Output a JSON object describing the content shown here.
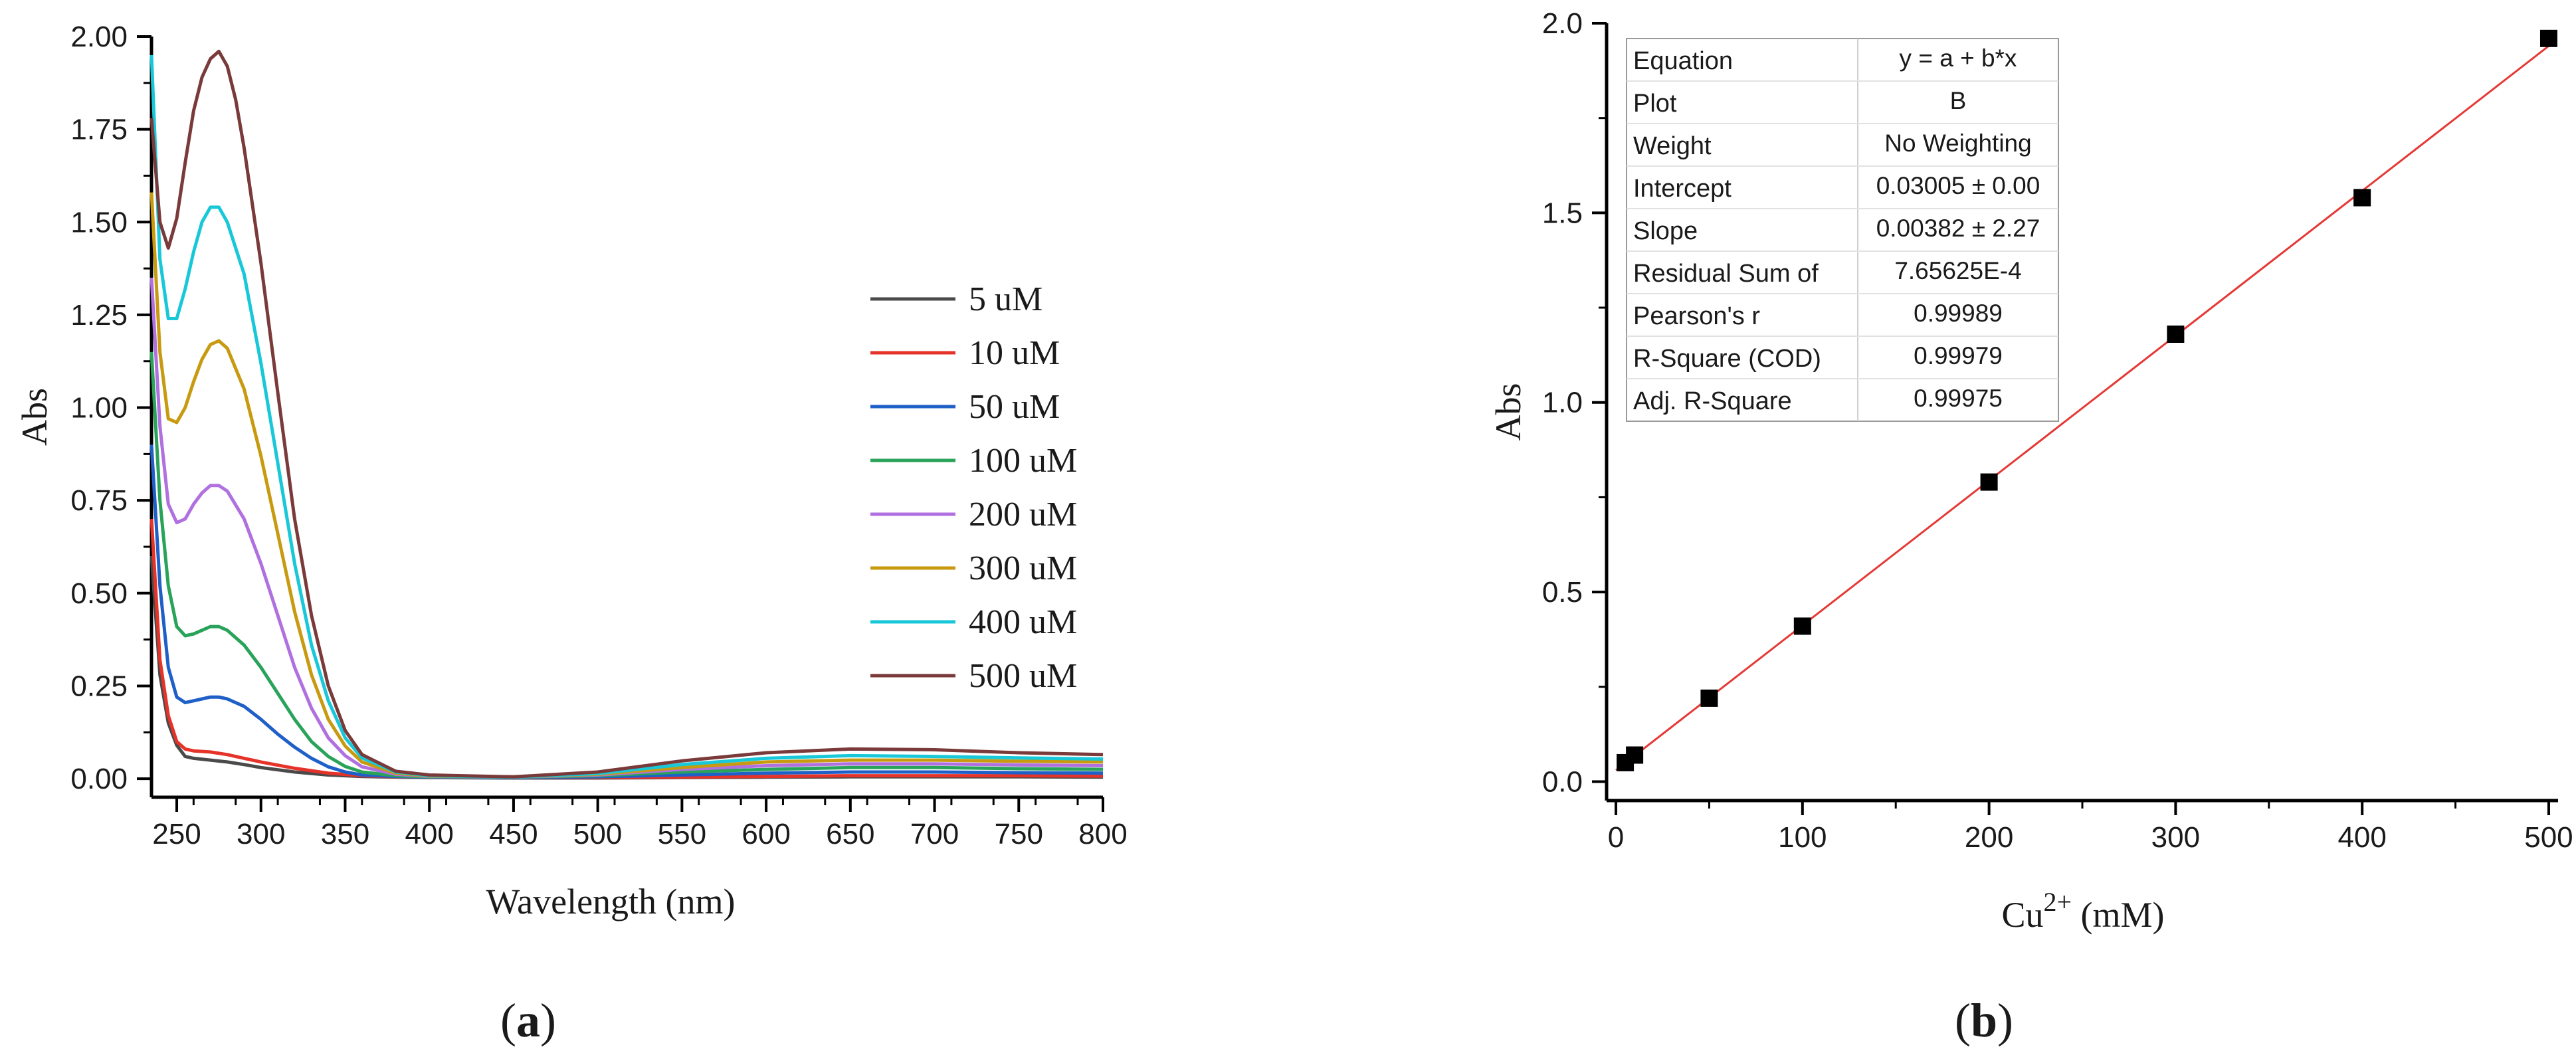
{
  "chart_data": [
    {
      "id": "a",
      "panel_label": "a",
      "type": "line",
      "xlabel": "Wavelength (nm)",
      "ylabel": "Abs",
      "xlim": [
        235,
        800
      ],
      "ylim": [
        -0.05,
        2.0
      ],
      "xticks": [
        250,
        300,
        350,
        400,
        450,
        500,
        550,
        600,
        650,
        700,
        750,
        800
      ],
      "yticks": [
        0.0,
        0.25,
        0.5,
        0.75,
        1.0,
        1.25,
        1.5,
        1.75,
        2.0
      ],
      "ytick_labels": [
        "0.00",
        "0.25",
        "0.50",
        "0.75",
        "1.00",
        "1.25",
        "1.50",
        "1.75",
        "2.00"
      ],
      "legend_position": "right-center",
      "series": [
        {
          "name": "5 uM",
          "color": "#4a4a4a",
          "x": [
            235,
            240,
            245,
            250,
            255,
            260,
            270,
            280,
            290,
            300,
            320,
            340,
            360,
            380,
            400,
            450,
            500,
            550,
            600,
            650,
            700,
            750,
            800
          ],
          "y": [
            0.6,
            0.28,
            0.15,
            0.09,
            0.06,
            0.055,
            0.05,
            0.045,
            0.038,
            0.03,
            0.018,
            0.01,
            0.006,
            0.004,
            0.003,
            0.002,
            0.002,
            0.003,
            0.004,
            0.005,
            0.005,
            0.005,
            0.004
          ]
        },
        {
          "name": "10 uM",
          "color": "#e5332a",
          "x": [
            235,
            240,
            245,
            250,
            255,
            260,
            270,
            280,
            290,
            300,
            320,
            340,
            360,
            380,
            400,
            450,
            500,
            550,
            600,
            650,
            700,
            750,
            800
          ],
          "y": [
            0.7,
            0.32,
            0.17,
            0.1,
            0.08,
            0.075,
            0.072,
            0.065,
            0.055,
            0.045,
            0.028,
            0.015,
            0.008,
            0.005,
            0.004,
            0.003,
            0.003,
            0.004,
            0.006,
            0.008,
            0.008,
            0.008,
            0.007
          ]
        },
        {
          "name": "50 uM",
          "color": "#1f5fc8",
          "x": [
            235,
            240,
            245,
            250,
            255,
            260,
            265,
            270,
            275,
            280,
            290,
            300,
            310,
            320,
            330,
            340,
            350,
            360,
            380,
            400,
            450,
            500,
            550,
            600,
            650,
            700,
            750,
            800
          ],
          "y": [
            0.9,
            0.52,
            0.3,
            0.22,
            0.205,
            0.21,
            0.215,
            0.22,
            0.22,
            0.215,
            0.195,
            0.16,
            0.12,
            0.085,
            0.055,
            0.032,
            0.018,
            0.01,
            0.006,
            0.004,
            0.003,
            0.005,
            0.01,
            0.015,
            0.018,
            0.018,
            0.016,
            0.015
          ]
        },
        {
          "name": "100 uM",
          "color": "#2aa35a",
          "x": [
            235,
            240,
            245,
            250,
            255,
            260,
            265,
            270,
            275,
            280,
            290,
            300,
            310,
            320,
            330,
            340,
            350,
            360,
            380,
            400,
            450,
            500,
            550,
            600,
            650,
            700,
            750,
            800
          ],
          "y": [
            1.15,
            0.75,
            0.52,
            0.41,
            0.385,
            0.39,
            0.4,
            0.41,
            0.41,
            0.4,
            0.36,
            0.3,
            0.23,
            0.16,
            0.1,
            0.06,
            0.033,
            0.018,
            0.008,
            0.005,
            0.004,
            0.008,
            0.018,
            0.025,
            0.03,
            0.03,
            0.027,
            0.025
          ]
        },
        {
          "name": "200 uM",
          "color": "#b070e0",
          "x": [
            235,
            240,
            245,
            250,
            255,
            260,
            265,
            270,
            275,
            280,
            290,
            300,
            310,
            320,
            330,
            340,
            350,
            360,
            380,
            400,
            450,
            500,
            550,
            600,
            650,
            700,
            750,
            800
          ],
          "y": [
            1.35,
            0.95,
            0.74,
            0.69,
            0.7,
            0.74,
            0.77,
            0.79,
            0.79,
            0.775,
            0.7,
            0.58,
            0.44,
            0.3,
            0.19,
            0.11,
            0.062,
            0.032,
            0.012,
            0.006,
            0.004,
            0.01,
            0.025,
            0.035,
            0.04,
            0.04,
            0.037,
            0.035
          ]
        },
        {
          "name": "300 uM",
          "color": "#c89a10",
          "x": [
            235,
            240,
            245,
            250,
            255,
            260,
            265,
            270,
            275,
            280,
            290,
            300,
            310,
            320,
            330,
            340,
            350,
            360,
            380,
            400,
            450,
            500,
            550,
            600,
            650,
            700,
            750,
            800
          ],
          "y": [
            1.58,
            1.15,
            0.97,
            0.96,
            1.0,
            1.07,
            1.13,
            1.17,
            1.18,
            1.16,
            1.05,
            0.87,
            0.66,
            0.45,
            0.28,
            0.16,
            0.088,
            0.045,
            0.015,
            0.007,
            0.004,
            0.012,
            0.03,
            0.045,
            0.05,
            0.05,
            0.047,
            0.045
          ]
        },
        {
          "name": "400 uM",
          "color": "#18c8d8",
          "x": [
            235,
            240,
            245,
            250,
            255,
            260,
            265,
            270,
            275,
            280,
            285,
            290,
            300,
            310,
            320,
            330,
            340,
            350,
            360,
            380,
            400,
            450,
            500,
            550,
            600,
            650,
            700,
            750,
            800
          ],
          "y": [
            1.95,
            1.4,
            1.24,
            1.24,
            1.32,
            1.42,
            1.5,
            1.54,
            1.54,
            1.5,
            1.43,
            1.36,
            1.12,
            0.85,
            0.58,
            0.36,
            0.21,
            0.11,
            0.056,
            0.018,
            0.008,
            0.004,
            0.014,
            0.038,
            0.055,
            0.062,
            0.06,
            0.056,
            0.053
          ]
        },
        {
          "name": "500 uM",
          "color": "#7a3a3a",
          "x": [
            235,
            240,
            245,
            250,
            255,
            260,
            265,
            270,
            275,
            280,
            285,
            290,
            300,
            310,
            320,
            330,
            340,
            350,
            360,
            380,
            400,
            450,
            500,
            550,
            600,
            650,
            700,
            750,
            800
          ],
          "y": [
            1.78,
            1.5,
            1.43,
            1.51,
            1.66,
            1.8,
            1.89,
            1.94,
            1.96,
            1.92,
            1.83,
            1.7,
            1.39,
            1.04,
            0.7,
            0.44,
            0.25,
            0.13,
            0.065,
            0.02,
            0.01,
            0.005,
            0.018,
            0.048,
            0.07,
            0.08,
            0.078,
            0.07,
            0.065
          ]
        }
      ]
    },
    {
      "id": "b",
      "panel_label": "b",
      "type": "scatter",
      "xlabel_base": "Cu",
      "xlabel_sup": "2+",
      "xlabel_unit": " (mM)",
      "ylabel": "Abs",
      "xlim": [
        -5,
        505
      ],
      "ylim": [
        -0.05,
        2.0
      ],
      "xticks": [
        0,
        100,
        200,
        300,
        400,
        500
      ],
      "xtick_labels": [
        "0",
        "100",
        "200",
        "300",
        "400",
        "500"
      ],
      "yticks": [
        0.0,
        0.5,
        1.0,
        1.5,
        2.0
      ],
      "ytick_labels": [
        "0.0",
        "0.5",
        "1.0",
        "1.5",
        "2.0"
      ],
      "points": {
        "x": [
          5,
          10,
          50,
          100,
          200,
          300,
          400,
          500
        ],
        "y": [
          0.05,
          0.07,
          0.22,
          0.41,
          0.79,
          1.18,
          1.54,
          1.96
        ]
      },
      "fit": {
        "intercept": 0.03005,
        "slope": 0.00382,
        "x_range": [
          0,
          500
        ],
        "color": "#e53935"
      },
      "fit_table": [
        {
          "label": "Equation",
          "value": "y = a + b*x"
        },
        {
          "label": "Plot",
          "value": "B"
        },
        {
          "label": "Weight",
          "value": "No Weighting"
        },
        {
          "label": "Intercept",
          "value": "0.03005 ± 0.00"
        },
        {
          "label": "Slope",
          "value": "0.00382 ± 2.27"
        },
        {
          "label": "Residual Sum of",
          "value": "7.65625E-4"
        },
        {
          "label": "Pearson's r",
          "value": "0.99989"
        },
        {
          "label": "R-Square (COD)",
          "value": "0.99979"
        },
        {
          "label": "Adj. R-Square",
          "value": "0.99975"
        }
      ]
    }
  ]
}
